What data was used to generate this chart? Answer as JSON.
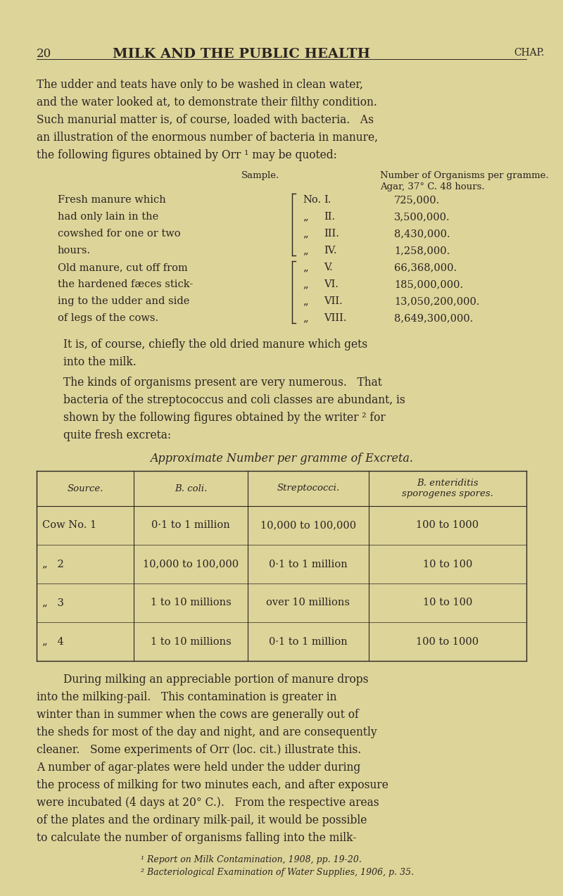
{
  "bg_color": "#DDD49A",
  "text_color": "#2A2420",
  "page_width": 8.0,
  "page_height": 12.73,
  "dpi": 100,
  "header_number": "20",
  "header_title": "MILK AND THE PUBLIC HEALTH",
  "header_chap": "CHAP.",
  "para1_lines": [
    "The udder and teats have only to be washed in clean water,",
    "and the water looked at, to demonstrate their filthy condition.",
    "Such manurial matter is, of course, loaded with bacteria.   As",
    "an illustration of the enormous number of bacteria in manure,",
    "the following figures obtained by Orr ¹ may be quoted:"
  ],
  "sample_col1": "Sample.",
  "sample_col2a": "Number of Organisms per gramme.",
  "sample_col2b": "Agar, 37° C. 48 hours.",
  "manure_rows": [
    [
      "Fresh manure which",
      "No.",
      "I.",
      "725,000."
    ],
    [
      "had only lain in the",
      "„",
      "II.",
      "3,500,000."
    ],
    [
      "cowshed for one or two",
      "„",
      "III.",
      "8,430,000."
    ],
    [
      "hours.",
      "„",
      "IV.",
      "1,258,000."
    ],
    [
      "Old manure, cut off from",
      "„",
      "V.",
      "66,368,000."
    ],
    [
      "the hardened fæces stick-",
      "„",
      "VI.",
      "185,000,000."
    ],
    [
      "ing to the udder and side",
      "„",
      "VII.",
      "13,050,200,000."
    ],
    [
      "of legs of the cows.",
      "„",
      "VIII.",
      "8,649,300,000."
    ]
  ],
  "bracket1_rows": [
    0,
    3
  ],
  "bracket2_rows": [
    4,
    7
  ],
  "para2_lines": [
    "It is, of course, chiefly the old dried manure which gets",
    "into the milk."
  ],
  "para3_lines": [
    "The kinds of organisms present are very numerous.   That",
    "bacteria of the streptococcus and coli classes are abundant, is",
    "shown by the following figures obtained by the writer ² for",
    "quite fresh excreta:"
  ],
  "excreta_title": "Approximate Number per gramme of Excreta.",
  "excreta_headers": [
    "Source.",
    "B. coli.",
    "Streptococci.",
    "B. enteriditis\nsporogenes spores."
  ],
  "excreta_rows": [
    [
      "Cow No. 1",
      "0·1 to 1 million",
      "10,000 to 100,000",
      "100 to 1000"
    ],
    [
      "„   2",
      "10,000 to 100,000",
      "0·1 to 1 million",
      "10 to 100"
    ],
    [
      "„   3",
      "1 to 10 millions",
      "over 10 millions",
      "10 to 100"
    ],
    [
      "„   4",
      "1 to 10 millions",
      "0·1 to 1 million",
      "100 to 1000"
    ]
  ],
  "para4_lines": [
    "During milking an appreciable portion of manure drops",
    "into the milking-pail.   This contamination is greater in",
    "winter than in summer when the cows are generally out of",
    "the sheds for most of the day and night, and are consequently",
    "cleaner.   Some experiments of Orr (loc. cit.) illustrate this.",
    "A number of agar-plates were held under the udder during",
    "the process of milking for two minutes each, and after exposure",
    "were incubated (4 days at 20° C.).   From the respective areas",
    "of the plates and the ordinary milk-pail, it would be possible",
    "to calculate the number of organisms falling into the milk-"
  ],
  "footnote1": "¹ Report on Milk Contamination, 1908, pp. 19-20.",
  "footnote2": "² Bacteriological Examination of Water Supplies, 1906, p. 35."
}
